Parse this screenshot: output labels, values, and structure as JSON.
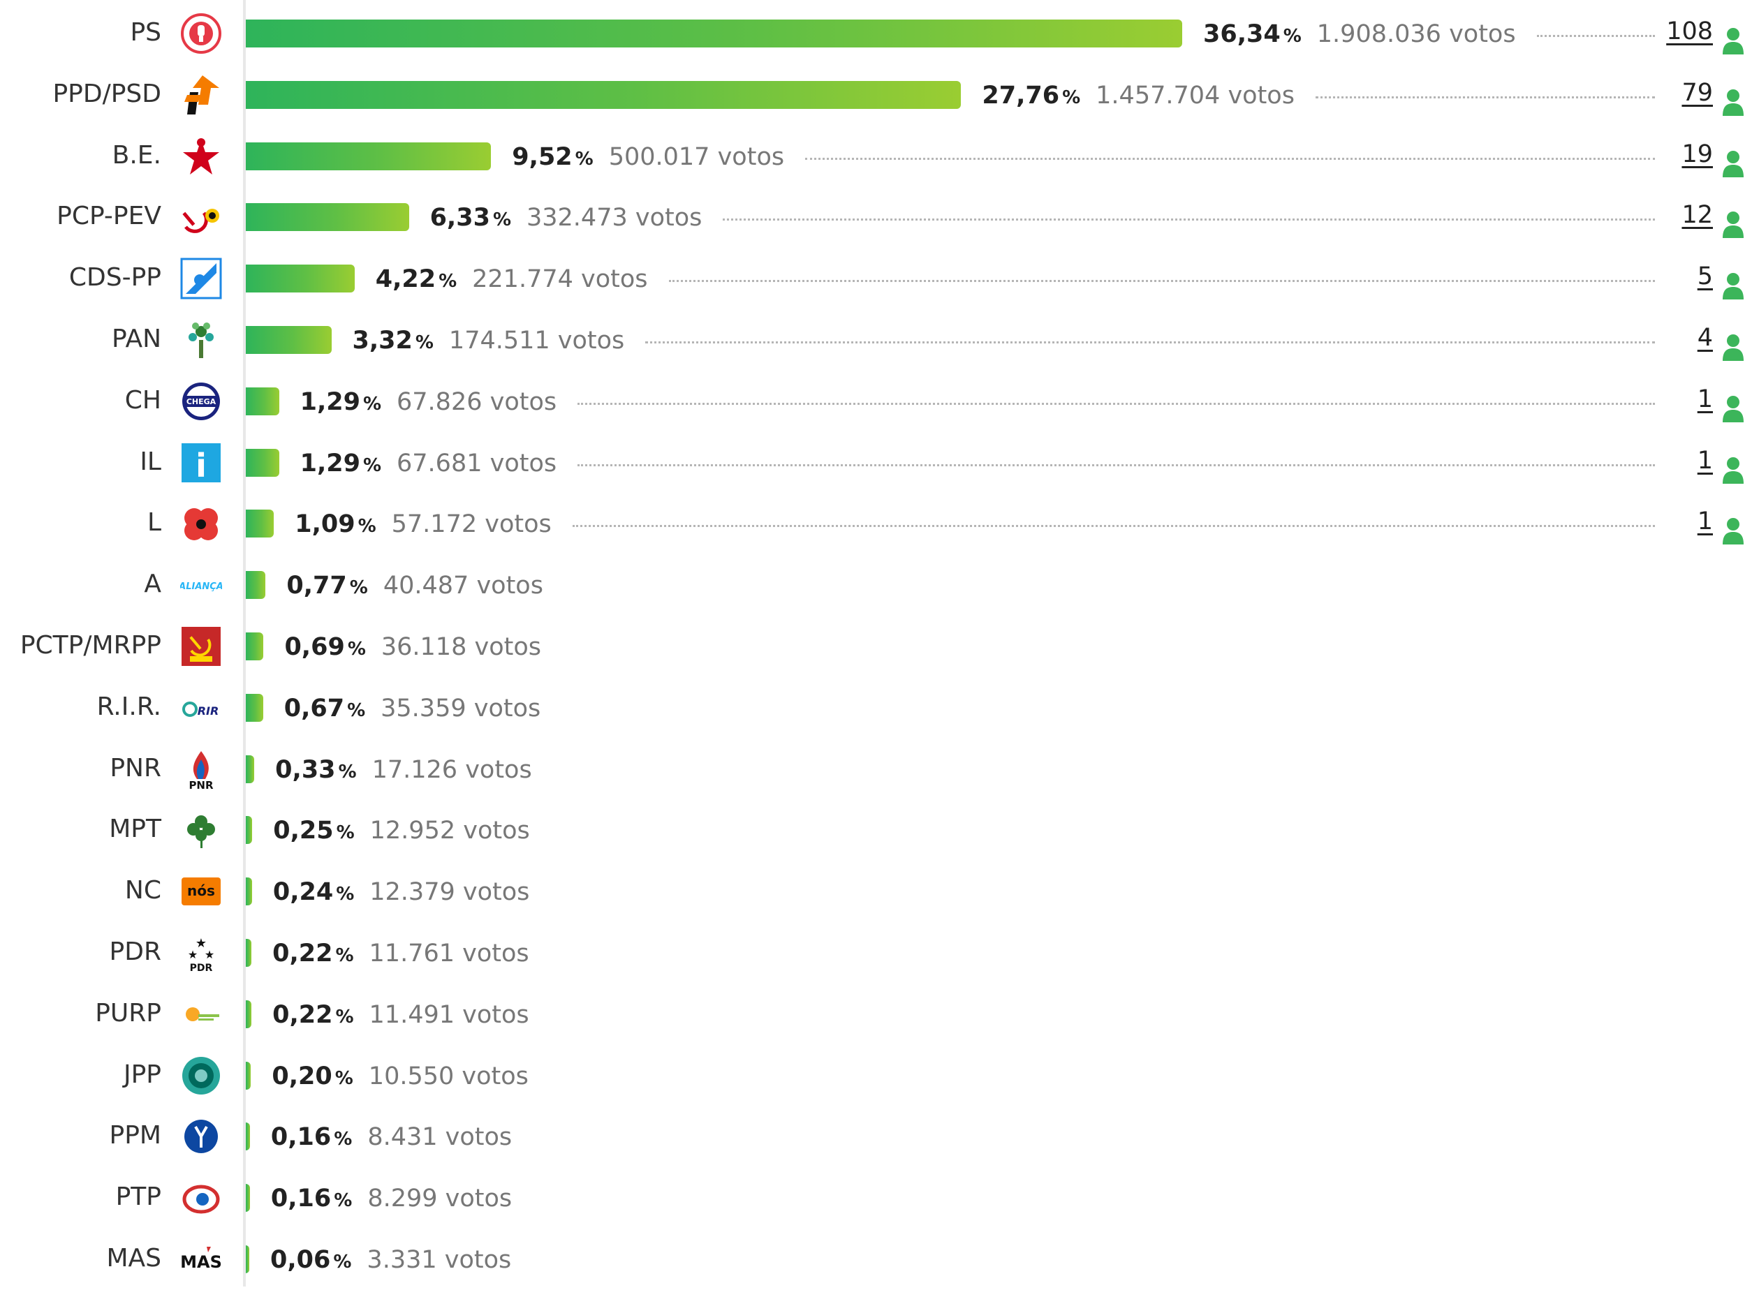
{
  "chart_data": {
    "type": "bar",
    "orientation": "horizontal",
    "colors": {
      "bar_start": "#2eb45a",
      "bar_end": "#9acd32",
      "seat_icon": "#3cb55a"
    },
    "percent_sign": "%",
    "votes_suffix": "votos",
    "rows": [
      {
        "party": "PS",
        "logo": "ps-fist-rose-logo",
        "pct": 36.34,
        "pct_label": "36,34",
        "votes": "1.908.036",
        "seats": "108"
      },
      {
        "party": "PPD/PSD",
        "logo": "psd-arrows-logo",
        "pct": 27.76,
        "pct_label": "27,76",
        "votes": "1.457.704",
        "seats": "79"
      },
      {
        "party": "B.E.",
        "logo": "be-star-logo",
        "pct": 9.52,
        "pct_label": "9,52",
        "votes": "500.017",
        "seats": "19"
      },
      {
        "party": "PCP-PEV",
        "logo": "pcp-pev-hammer-sickle-logo",
        "pct": 6.33,
        "pct_label": "6,33",
        "votes": "332.473",
        "seats": "12"
      },
      {
        "party": "CDS-PP",
        "logo": "cds-pp-logo",
        "pct": 4.22,
        "pct_label": "4,22",
        "votes": "221.774",
        "seats": "5"
      },
      {
        "party": "PAN",
        "logo": "pan-tree-logo",
        "pct": 3.32,
        "pct_label": "3,32",
        "votes": "174.511",
        "seats": "4"
      },
      {
        "party": "CH",
        "logo": "chega-logo",
        "logo_text": "CHEGA",
        "pct": 1.29,
        "pct_label": "1,29",
        "votes": "67.826",
        "seats": "1"
      },
      {
        "party": "IL",
        "logo": "il-logo",
        "logo_text": "i",
        "pct": 1.29,
        "pct_label": "1,29",
        "votes": "67.681",
        "seats": "1"
      },
      {
        "party": "L",
        "logo": "livre-poppy-logo",
        "pct": 1.09,
        "pct_label": "1,09",
        "votes": "57.172",
        "seats": "1"
      },
      {
        "party": "A",
        "logo": "alianca-logo",
        "logo_text": "ALIANÇA",
        "pct": 0.77,
        "pct_label": "0,77",
        "votes": "40.487",
        "seats": ""
      },
      {
        "party": "PCTP/MRPP",
        "logo": "pctp-mrpp-logo",
        "pct": 0.69,
        "pct_label": "0,69",
        "votes": "36.118",
        "seats": ""
      },
      {
        "party": "R.I.R.",
        "logo": "rir-logo",
        "logo_text": "RIR",
        "pct": 0.67,
        "pct_label": "0,67",
        "votes": "35.359",
        "seats": ""
      },
      {
        "party": "PNR",
        "logo": "pnr-flame-logo",
        "logo_text": "PNR",
        "pct": 0.33,
        "pct_label": "0,33",
        "votes": "17.126",
        "seats": ""
      },
      {
        "party": "MPT",
        "logo": "mpt-clover-logo",
        "pct": 0.25,
        "pct_label": "0,25",
        "votes": "12.952",
        "seats": ""
      },
      {
        "party": "NC",
        "logo": "nc-nos-logo",
        "logo_text": "nós",
        "pct": 0.24,
        "pct_label": "0,24",
        "votes": "12.379",
        "seats": ""
      },
      {
        "party": "PDR",
        "logo": "pdr-stars-logo",
        "logo_text": "PDR",
        "pct": 0.22,
        "pct_label": "0,22",
        "votes": "11.761",
        "seats": ""
      },
      {
        "party": "PURP",
        "logo": "purp-logo",
        "pct": 0.22,
        "pct_label": "0,22",
        "votes": "11.491",
        "seats": ""
      },
      {
        "party": "JPP",
        "logo": "jpp-logo",
        "pct": 0.2,
        "pct_label": "0,20",
        "votes": "10.550",
        "seats": ""
      },
      {
        "party": "PPM",
        "logo": "ppm-logo",
        "pct": 0.16,
        "pct_label": "0,16",
        "votes": "8.431",
        "seats": ""
      },
      {
        "party": "PTP",
        "logo": "ptp-logo",
        "pct": 0.16,
        "pct_label": "0,16",
        "votes": "8.299",
        "seats": ""
      },
      {
        "party": "MAS",
        "logo": "mas-logo",
        "logo_text": "MAS",
        "pct": 0.06,
        "pct_label": "0,06",
        "votes": "3.331",
        "seats": ""
      }
    ]
  }
}
